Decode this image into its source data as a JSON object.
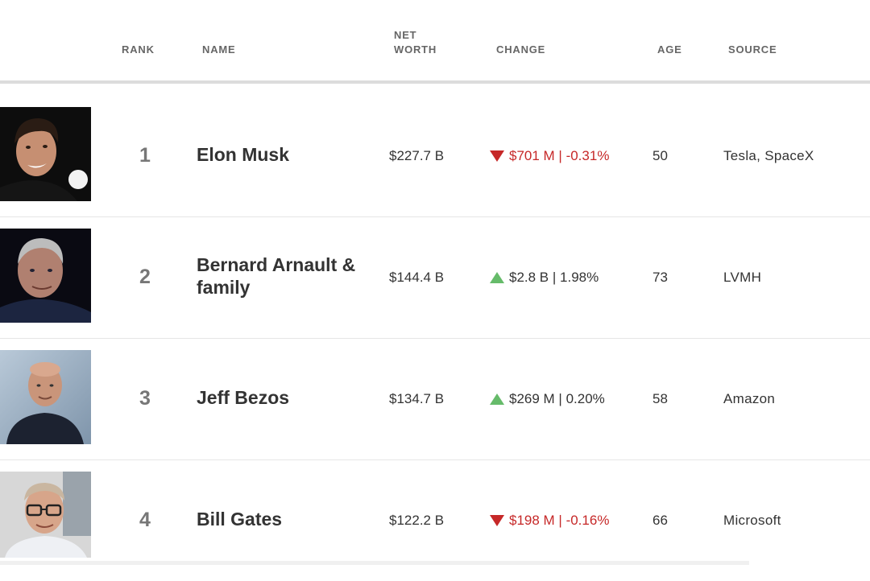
{
  "header": {
    "rank": "RANK",
    "name": "NAME",
    "net_worth_line1": "NET",
    "net_worth_line2": "WORTH",
    "change": "CHANGE",
    "age": "AGE",
    "source": "SOURCE"
  },
  "colors": {
    "down": "#c62828",
    "up": "#66bb6a",
    "text": "#333333"
  },
  "rows": [
    {
      "rank": "1",
      "name": "Elon Musk",
      "net_worth": "$227.7 B",
      "change": "$701 M | -0.31%",
      "direction": "down",
      "age": "50",
      "source": "Tesla, SpaceX",
      "photo_icon": "person-photo"
    },
    {
      "rank": "2",
      "name": "Bernard Arnault & family",
      "net_worth": "$144.4 B",
      "change": "$2.8 B | 1.98%",
      "direction": "up",
      "age": "73",
      "source": "LVMH",
      "photo_icon": "person-photo"
    },
    {
      "rank": "3",
      "name": "Jeff Bezos",
      "net_worth": "$134.7 B",
      "change": "$269 M | 0.20%",
      "direction": "up",
      "age": "58",
      "source": "Amazon",
      "photo_icon": "person-photo"
    },
    {
      "rank": "4",
      "name": "Bill Gates",
      "net_worth": "$122.2 B",
      "change": "$198 M | -0.16%",
      "direction": "down",
      "age": "66",
      "source": "Microsoft",
      "photo_icon": "person-photo"
    }
  ]
}
